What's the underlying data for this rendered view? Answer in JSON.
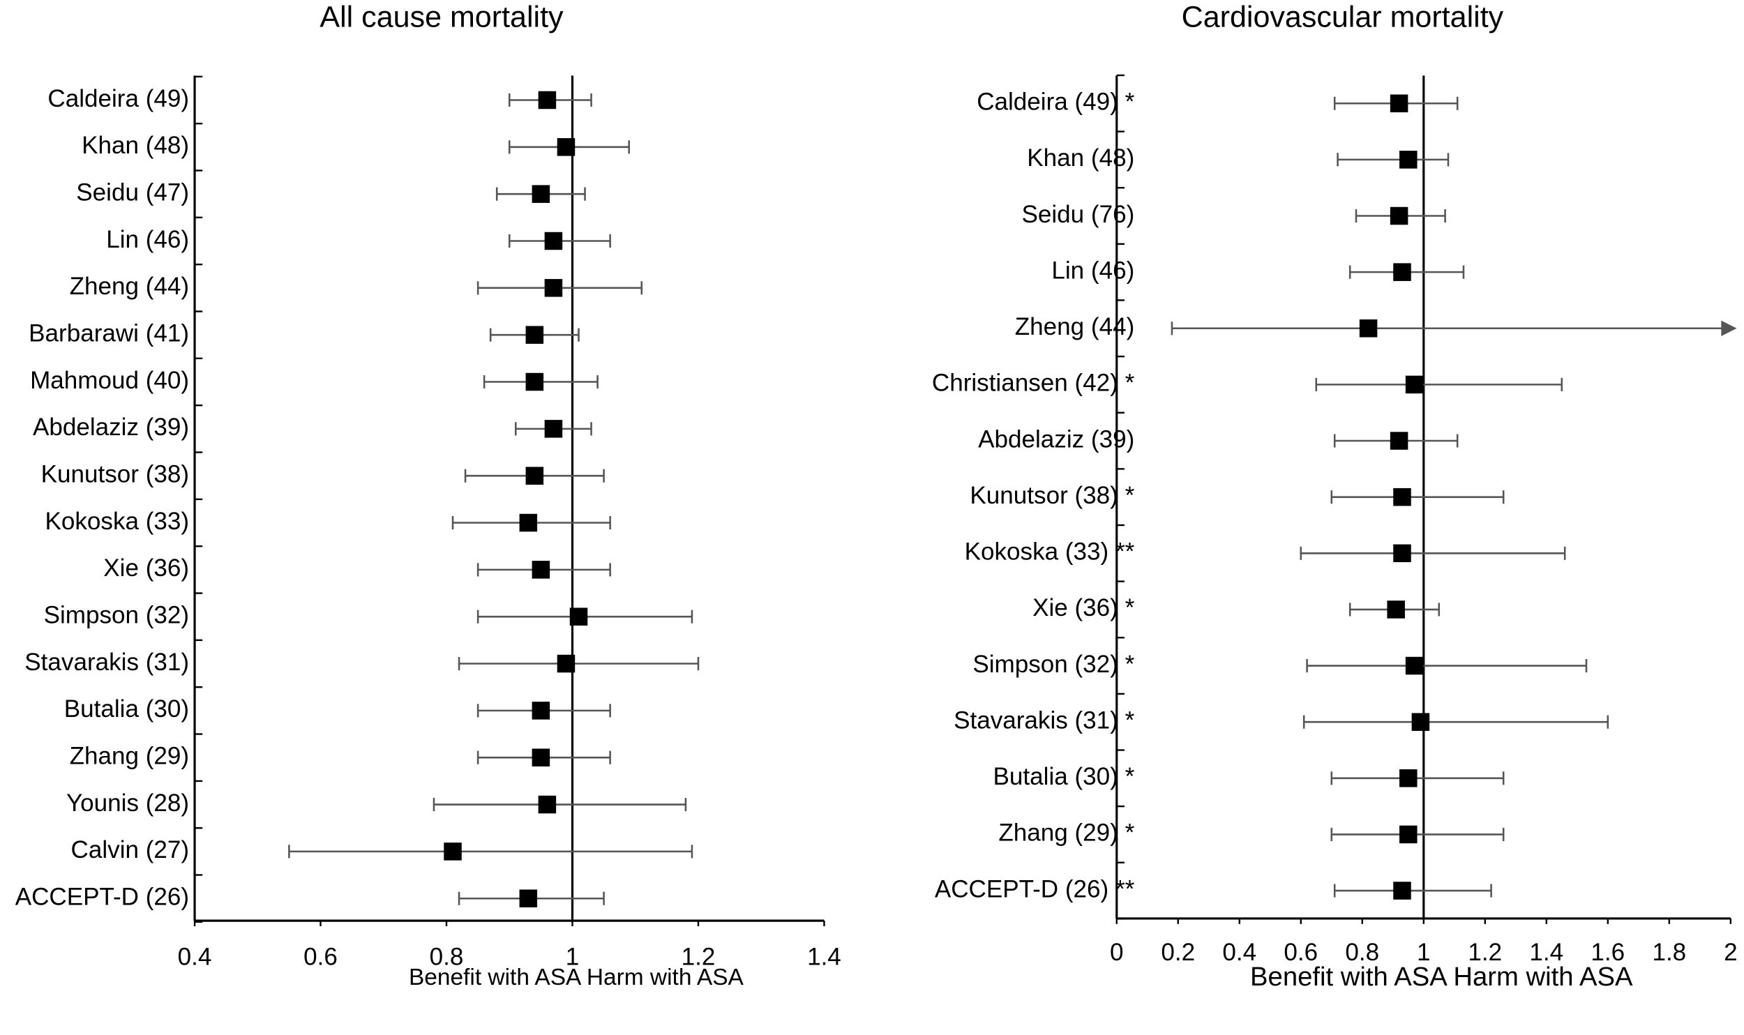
{
  "chart_data": [
    {
      "type": "forest",
      "title": "All cause mortality",
      "x_label": "Benefit with ASA Harm with ASA",
      "categories": [
        "Caldeira (49)",
        "Khan (48)",
        "Seidu (47)",
        "Lin (46)",
        "Zheng (44)",
        "Barbarawi (41)",
        "Mahmoud (40)",
        "Abdelaziz (39)",
        "Kunutsor (38)",
        "Kokoska (33)",
        "Xie (36)",
        "Simpson (32)",
        "Stavarakis (31)",
        "Butalia (30)",
        "Zhang (29)",
        "Younis (28)",
        "Calvin (27)",
        "ACCEPT-D (26)"
      ],
      "values": [
        0.96,
        0.99,
        0.95,
        0.97,
        0.97,
        0.94,
        0.94,
        0.97,
        0.94,
        0.93,
        0.95,
        1.01,
        0.99,
        0.95,
        0.95,
        0.96,
        0.81,
        0.93
      ],
      "lower": [
        0.9,
        0.9,
        0.88,
        0.9,
        0.85,
        0.87,
        0.86,
        0.91,
        0.83,
        0.81,
        0.85,
        0.85,
        0.82,
        0.85,
        0.85,
        0.78,
        0.55,
        0.82
      ],
      "upper": [
        1.03,
        1.09,
        1.02,
        1.06,
        1.11,
        1.01,
        1.04,
        1.03,
        1.05,
        1.06,
        1.06,
        1.19,
        1.2,
        1.06,
        1.06,
        1.18,
        1.19,
        1.05
      ],
      "xlim": [
        0.4,
        1.4
      ],
      "xticks": [
        0.4,
        0.6,
        0.8,
        1,
        1.2,
        1.4
      ],
      "reference_line": 1,
      "marker_color": "#000000",
      "whisker_color": "#555555"
    },
    {
      "type": "forest",
      "title": "Cardiovascular mortality",
      "x_label": "Benefit with ASA Harm with ASA",
      "categories": [
        "Caldeira (49) *",
        "Khan (48)",
        "Seidu (76)",
        "Lin (46)",
        "Zheng (44)",
        "Christiansen (42) *",
        "Abdelaziz (39)",
        "Kunutsor (38) *",
        "Kokoska (33) **",
        "Xie (36) *",
        "Simpson (32) *",
        "Stavarakis (31) *",
        "Butalia (30) *",
        "Zhang (29) *",
        "ACCEPT-D (26) **"
      ],
      "values": [
        0.92,
        0.95,
        0.92,
        0.93,
        0.82,
        0.97,
        0.92,
        0.93,
        0.93,
        0.91,
        0.97,
        0.99,
        0.95,
        0.95,
        0.93
      ],
      "lower": [
        0.71,
        0.72,
        0.78,
        0.76,
        0.18,
        0.65,
        0.71,
        0.7,
        0.6,
        0.76,
        0.62,
        0.61,
        0.7,
        0.7,
        0.71
      ],
      "upper": [
        1.11,
        1.08,
        1.07,
        1.13,
        2.02,
        1.45,
        1.11,
        1.26,
        1.46,
        1.05,
        1.53,
        1.6,
        1.26,
        1.26,
        1.22
      ],
      "xlim": [
        0,
        2
      ],
      "xticks": [
        0,
        0.2,
        0.4,
        0.6,
        0.8,
        1,
        1.2,
        1.4,
        1.6,
        1.8,
        2
      ],
      "reference_line": 1,
      "marker_color": "#000000",
      "whisker_color": "#555555"
    }
  ]
}
